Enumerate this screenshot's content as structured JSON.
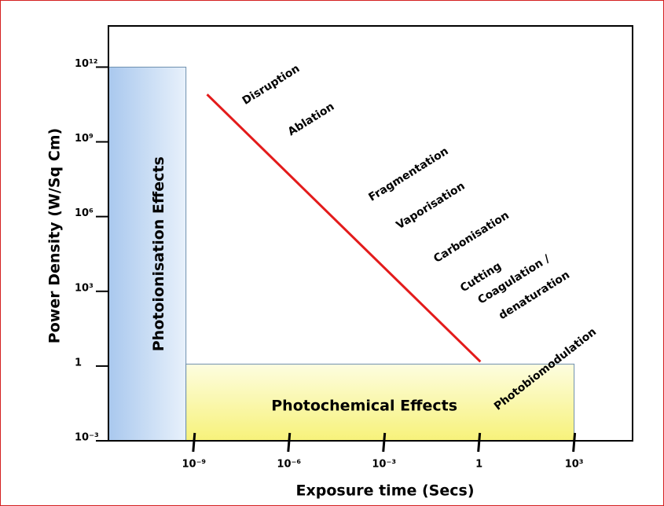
{
  "chart_data": {
    "type": "line",
    "xlabel": "Exposure time (Secs)",
    "ylabel": "Power Density (W/Sq Cm)",
    "xscale": "log",
    "yscale": "log",
    "xlim": [
      2e-12,
      70000.0
    ],
    "ylim": [
      0.001,
      45000000000000.0
    ],
    "xticks": [
      {
        "value": 1e-09,
        "label": "10⁻⁹"
      },
      {
        "value": 1e-06,
        "label": "10⁻⁶"
      },
      {
        "value": 0.001,
        "label": "10⁻³"
      },
      1,
      {
        "value": 1000.0,
        "label": "10³"
      }
    ],
    "yticks": [
      {
        "value": 0.001,
        "label": "10⁻³"
      },
      1,
      {
        "value": 1000.0,
        "label": "10³"
      },
      {
        "value": 1000000.0,
        "label": "10⁶"
      },
      {
        "value": 1000000000.0,
        "label": "10⁹"
      },
      {
        "value": 1000000000000.0,
        "label": "10¹²"
      }
    ],
    "series": [
      {
        "color": "#e31b1b",
        "x": [
          2.6e-09,
          1.1
        ],
        "values": [
          80000000000.0,
          1.5
        ]
      }
    ],
    "regions": [
      {
        "label": "Photoionisation Effects",
        "x": [
          2e-12,
          5.6e-10
        ],
        "y": [
          0.001,
          1000000000000.0
        ]
      },
      {
        "label": "Photochemical Effects",
        "x": [
          5.6e-10,
          1000.0
        ],
        "y": [
          0.001,
          1.2
        ]
      }
    ],
    "annotations": [
      "Disruption",
      "Ablation",
      "Fragmentation",
      "Vaporisation",
      "Carbonisation",
      "Cutting",
      "Coagulation /",
      "denaturation",
      "Photobiomodulation"
    ]
  }
}
